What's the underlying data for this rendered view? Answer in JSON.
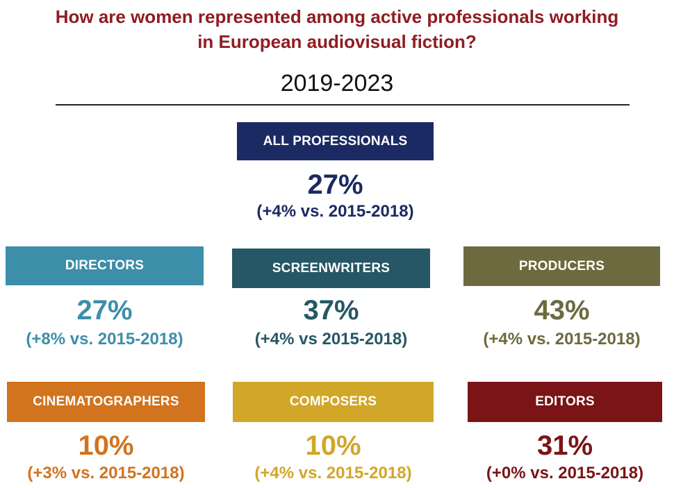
{
  "header": {
    "title_line1": "How are women represented among active professionals working",
    "title_line2": "in European audiovisual fiction?",
    "period": "2019-2023"
  },
  "categories": {
    "all": {
      "label": "ALL PROFESSIONALS",
      "value": "27%",
      "change": "(+4% vs. 2015-2018)",
      "color": "#1b2a63"
    },
    "directors": {
      "label": "DIRECTORS",
      "value": "27%",
      "change": "(+8% vs. 2015-2018)",
      "color": "#3d8ea8"
    },
    "screenwriters": {
      "label": "SCREENWRITERS",
      "value": "37%",
      "change": "(+4% vs 2015-2018)",
      "color": "#255766"
    },
    "producers": {
      "label": "PRODUCERS",
      "value": "43%",
      "change": "(+4% vs. 2015-2018)",
      "color": "#6c6a3e"
    },
    "cinematographers": {
      "label": "CINEMATOGRAPHERS",
      "value": "10%",
      "change": "(+3% vs. 2015-2018)",
      "color": "#d2731e"
    },
    "composers": {
      "label": "COMPOSERS",
      "value": "10%",
      "change": "(+4% vs. 2015-2018)",
      "color": "#d2a628"
    },
    "editors": {
      "label": "EDITORS",
      "value": "31%",
      "change": "(+0% vs. 2015-2018)",
      "color": "#7a1417"
    }
  }
}
